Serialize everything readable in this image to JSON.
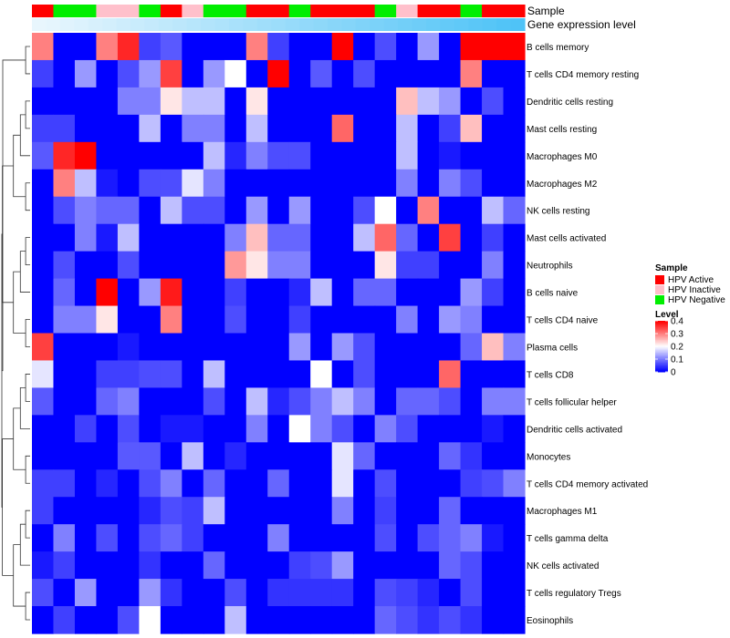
{
  "chart_data": {
    "type": "heatmap",
    "annotation_labels": {
      "top": "Sample",
      "bottom": "Gene expression level"
    },
    "rows": [
      "B cells memory",
      "T cells CD4 memory resting",
      "Dendritic cells resting",
      "Mast cells resting",
      "Macrophages M0",
      "Macrophages M2",
      "NK cells resting",
      "Mast cells activated",
      "Neutrophils",
      "B cells naive",
      "T cells CD4 naive",
      "Plasma cells",
      "T cells CD8",
      "T cells follicular helper",
      "Dendritic cells activated",
      "Monocytes",
      "T cells CD4 memory activated",
      "Macrophages M1",
      "T cells gamma delta",
      "NK cells activated",
      "T cells regulatory  Tregs",
      "Eosinophils"
    ],
    "sample_groups": [
      "A",
      "N",
      "N",
      "I",
      "I",
      "N",
      "A",
      "I",
      "N",
      "N",
      "A",
      "A",
      "N",
      "A",
      "A",
      "A",
      "N",
      "I",
      "A",
      "A",
      "N",
      "A",
      "A"
    ],
    "expression_level_gradient": [
      0,
      0.02,
      0.05,
      0.08,
      0.11,
      0.14,
      0.17,
      0.2,
      0.23,
      0.26,
      0.29,
      0.32,
      0.35,
      0.38,
      0.41,
      0.44,
      0.47,
      0.5,
      0.53,
      0.56,
      0.59,
      0.62,
      0.65,
      0.68,
      0.71,
      0.74,
      0.77,
      0.8,
      0.83,
      0.86,
      0.89,
      0.92,
      0.95,
      0.98,
      1
    ],
    "values": [
      [
        0.3,
        0,
        0,
        0.3,
        0.37,
        0.05,
        0.07,
        0,
        0,
        0,
        0.3,
        0.05,
        0,
        0,
        0.42,
        0,
        0.06,
        0,
        0.12,
        0,
        0.42,
        0.42,
        0.42
      ],
      [
        0.05,
        0,
        0.12,
        0,
        0.06,
        0.12,
        0.35,
        0,
        0.12,
        0.2,
        0,
        0.42,
        0,
        0.07,
        0,
        0.06,
        0,
        0,
        0,
        0,
        0.3,
        0,
        0
      ],
      [
        0,
        0,
        0,
        0,
        0.1,
        0.1,
        0.22,
        0.15,
        0.15,
        0,
        0.22,
        0,
        0,
        0,
        0,
        0,
        0,
        0.25,
        0.15,
        0.12,
        0,
        0.06,
        0
      ],
      [
        0.05,
        0.05,
        0,
        0,
        0,
        0.15,
        0,
        0.1,
        0.1,
        0,
        0.15,
        0,
        0,
        0,
        0.32,
        0,
        0,
        0.15,
        0,
        0.05,
        0.25,
        0,
        0
      ],
      [
        0.07,
        0.37,
        0.42,
        0,
        0,
        0,
        0,
        0,
        0.15,
        0.03,
        0.1,
        0.06,
        0.06,
        0,
        0,
        0,
        0,
        0.15,
        0,
        0.02,
        0,
        0,
        0
      ],
      [
        0,
        0.3,
        0.15,
        0.02,
        0,
        0.06,
        0.06,
        0.18,
        0.1,
        0,
        0,
        0,
        0,
        0,
        0,
        0,
        0,
        0.1,
        0,
        0.1,
        0.06,
        0,
        0
      ],
      [
        0,
        0.06,
        0.1,
        0.08,
        0.08,
        0,
        0.15,
        0.06,
        0.06,
        0,
        0.12,
        0,
        0.12,
        0,
        0,
        0.06,
        0.2,
        0,
        0.3,
        0,
        0,
        0.15,
        0.08
      ],
      [
        0,
        0,
        0.1,
        0.02,
        0.15,
        0,
        0,
        0,
        0,
        0.1,
        0.25,
        0.08,
        0.08,
        0,
        0,
        0.15,
        0.32,
        0.08,
        0,
        0.35,
        0,
        0.05,
        0
      ],
      [
        0,
        0.06,
        0,
        0,
        0.06,
        0,
        0,
        0,
        0,
        0.28,
        0.22,
        0.1,
        0.1,
        0,
        0,
        0,
        0.22,
        0.05,
        0.05,
        0,
        0,
        0.1,
        0
      ],
      [
        0,
        0.08,
        0,
        0.42,
        0,
        0.12,
        0.38,
        0,
        0,
        0.05,
        0,
        0,
        0.03,
        0.15,
        0,
        0.08,
        0.08,
        0,
        0,
        0,
        0.12,
        0.05,
        0
      ],
      [
        0,
        0.1,
        0.1,
        0.22,
        0,
        0,
        0.3,
        0,
        0,
        0.06,
        0,
        0,
        0.05,
        0,
        0,
        0,
        0,
        0.1,
        0,
        0.12,
        0.1,
        0,
        0
      ],
      [
        0.35,
        0,
        0,
        0,
        0.02,
        0,
        0,
        0,
        0,
        0,
        0,
        0,
        0.12,
        0,
        0.12,
        0.06,
        0,
        0,
        0,
        0,
        0.08,
        0.25,
        0.1
      ],
      [
        0.18,
        0,
        0,
        0.05,
        0.05,
        0.06,
        0.06,
        0,
        0.15,
        0,
        0,
        0,
        0,
        0.2,
        0,
        0.06,
        0,
        0,
        0,
        0.32,
        0,
        0,
        0
      ],
      [
        0.07,
        0,
        0,
        0.08,
        0.1,
        0,
        0,
        0,
        0.06,
        0,
        0.15,
        0.03,
        0.06,
        0.1,
        0.15,
        0.1,
        0,
        0.08,
        0.08,
        0.06,
        0,
        0.1,
        0.1
      ],
      [
        0,
        0,
        0.05,
        0,
        0.06,
        0,
        0.02,
        0.02,
        0,
        0,
        0.1,
        0,
        0.2,
        0.1,
        0.06,
        0,
        0.1,
        0.06,
        0,
        0,
        0,
        0.02,
        0
      ],
      [
        0,
        0,
        0,
        0,
        0.07,
        0.07,
        0,
        0.15,
        0,
        0.03,
        0,
        0,
        0,
        0,
        0.18,
        0.08,
        0,
        0,
        0,
        0.08,
        0.04,
        0,
        0
      ],
      [
        0.05,
        0.05,
        0,
        0.03,
        0,
        0.06,
        0.1,
        0,
        0.08,
        0,
        0,
        0.08,
        0,
        0,
        0.18,
        0,
        0.06,
        0,
        0,
        0,
        0.05,
        0.06,
        0.1
      ],
      [
        0.05,
        0,
        0,
        0,
        0,
        0.03,
        0.06,
        0.05,
        0.15,
        0,
        0,
        0,
        0,
        0,
        0.1,
        0,
        0.05,
        0,
        0,
        0.08,
        0,
        0,
        0
      ],
      [
        0,
        0.1,
        0,
        0.06,
        0,
        0.06,
        0.08,
        0.05,
        0,
        0,
        0,
        0.1,
        0,
        0,
        0,
        0,
        0.06,
        0,
        0.06,
        0.08,
        0.1,
        0.02,
        0
      ],
      [
        0.02,
        0.05,
        0,
        0,
        0,
        0.04,
        0,
        0,
        0.08,
        0,
        0,
        0,
        0.05,
        0.06,
        0.12,
        0,
        0,
        0,
        0,
        0.08,
        0.06,
        0,
        0
      ],
      [
        0.06,
        0,
        0.12,
        0,
        0,
        0.12,
        0.04,
        0,
        0,
        0.06,
        0,
        0.04,
        0.04,
        0.04,
        0.04,
        0,
        0.06,
        0.05,
        0.03,
        0,
        0.06,
        0,
        0
      ],
      [
        0,
        0.05,
        0,
        0,
        0.06,
        0.2,
        0,
        0,
        0,
        0.15,
        0,
        0,
        0,
        0,
        0,
        0,
        0.08,
        0.06,
        0.04,
        0.06,
        0.04,
        0,
        0
      ]
    ],
    "dendrogram": "rows",
    "legend_sample": {
      "title": "Sample",
      "entries": [
        {
          "key": "A",
          "label": "HPV Active",
          "color": "#ff0000"
        },
        {
          "key": "I",
          "label": "HPV Inactive",
          "color": "#ffc0cb"
        },
        {
          "key": "N",
          "label": "HPV Negative",
          "color": "#00ee00"
        }
      ]
    },
    "legend_level": {
      "title": "Level",
      "min": 0,
      "max": 0.4,
      "ticks": [
        "0.4",
        "0.3",
        "0.2",
        "0.1",
        "0"
      ],
      "tick_values": [
        0.4,
        0.3,
        0.2,
        0.1,
        0
      ]
    },
    "colors": {
      "low": "#0000ff",
      "mid": "#ffffff",
      "high": "#ff0000"
    }
  }
}
